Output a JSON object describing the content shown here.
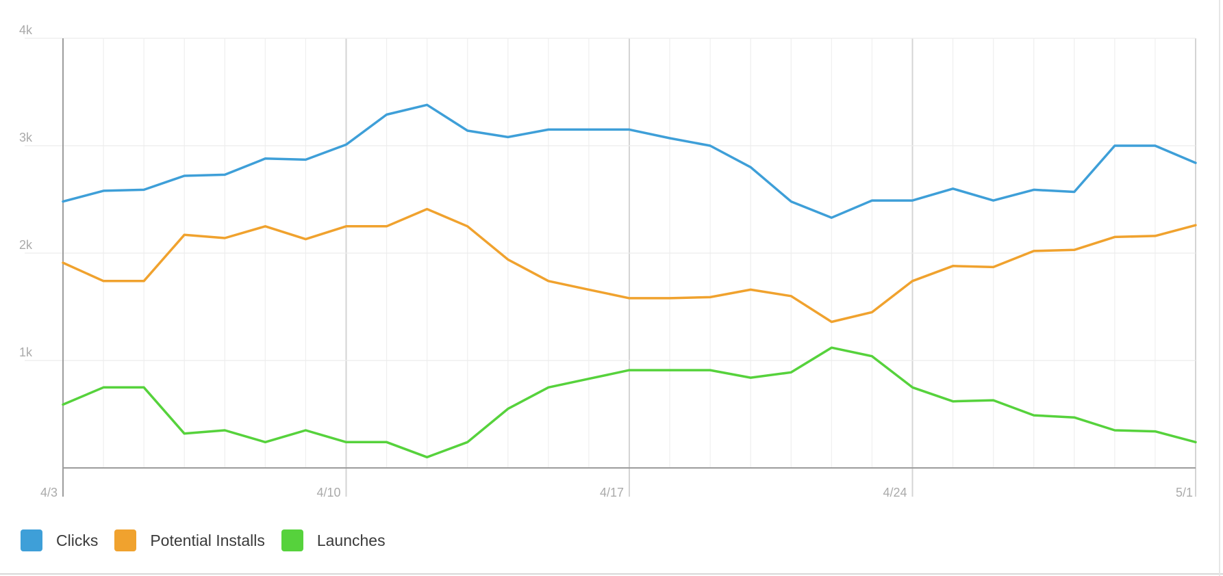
{
  "chart_data": {
    "type": "line",
    "title": "",
    "xlabel": "",
    "ylabel": "",
    "x": [
      "4/3",
      "4/4",
      "4/5",
      "4/6",
      "4/7",
      "4/8",
      "4/9",
      "4/10",
      "4/11",
      "4/12",
      "4/13",
      "4/14",
      "4/15",
      "4/16",
      "4/17",
      "4/18",
      "4/19",
      "4/20",
      "4/21",
      "4/22",
      "4/23",
      "4/24",
      "4/25",
      "4/26",
      "4/27",
      "4/28",
      "4/29",
      "4/30",
      "5/1"
    ],
    "x_tick_labels": [
      "4/3",
      "4/10",
      "4/17",
      "4/24",
      "5/1"
    ],
    "y_tick_labels": [
      "1k",
      "2k",
      "3k",
      "4k"
    ],
    "y_ticks": [
      0,
      1000,
      2000,
      3000,
      4000
    ],
    "ylim": [
      0,
      4000
    ],
    "grid": true,
    "legend_position": "bottom-left",
    "series": [
      {
        "name": "Clicks",
        "color": "#3e9fd8",
        "values": [
          2480,
          2580,
          2590,
          2720,
          2730,
          2880,
          2870,
          3010,
          3290,
          3380,
          3140,
          3080,
          3150,
          3150,
          3150,
          3070,
          3000,
          2800,
          2480,
          2330,
          2490,
          2490,
          2600,
          2490,
          2590,
          2570,
          3000,
          3000,
          2840
        ]
      },
      {
        "name": "Potential Installs",
        "color": "#f0a22e",
        "values": [
          1910,
          1740,
          1740,
          2170,
          2140,
          2250,
          2130,
          2250,
          2250,
          2410,
          2250,
          1940,
          1740,
          1660,
          1580,
          1580,
          1590,
          1660,
          1600,
          1360,
          1450,
          1740,
          1880,
          1870,
          2020,
          2030,
          2150,
          2160,
          2260
        ]
      },
      {
        "name": "Launches",
        "color": "#56d23c",
        "values": [
          590,
          750,
          750,
          320,
          350,
          240,
          350,
          240,
          240,
          100,
          240,
          550,
          750,
          830,
          910,
          910,
          910,
          840,
          890,
          1120,
          1040,
          750,
          620,
          630,
          490,
          470,
          350,
          340,
          240
        ]
      }
    ]
  }
}
